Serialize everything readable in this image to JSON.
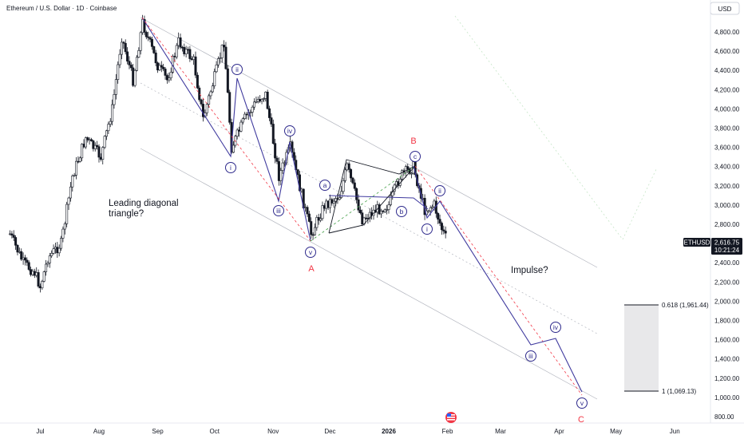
{
  "header": {
    "title": "Ethereum / U.S. Dollar · 1D · Coinbase",
    "currency_button": "USD"
  },
  "chart_data": {
    "type": "candlestick",
    "symbol": "ETHUSD",
    "exchange": "Coinbase",
    "interval": "1D",
    "currency": "USD",
    "grid": false,
    "ylim": [
      800,
      5000
    ],
    "price_axis_ticks": [
      "4,800.00",
      "4,600.00",
      "4,400.00",
      "4,200.00",
      "4,000.00",
      "3,800.00",
      "3,600.00",
      "3,400.00",
      "3,200.00",
      "3,000.00",
      "2,800.00",
      "2,600.00",
      "2,400.00",
      "2,200.00",
      "2,000.00",
      "1,800.00",
      "1,600.00",
      "1,400.00",
      "1,200.00",
      "1,000.00",
      "800.00"
    ],
    "time_axis_ticks": [
      "Jul",
      "Aug",
      "Sep",
      "Oct",
      "Nov",
      "Dec",
      "2026",
      "Feb",
      "Mar",
      "Apr",
      "May",
      "Jun"
    ],
    "last_price": {
      "label": "ETHUSD",
      "value": "2,616.75",
      "countdown": "10:21:24"
    },
    "price_path": [
      {
        "t": "2025-06-15",
        "price": 2700
      },
      {
        "t": "2025-06-22",
        "price": 2400
      },
      {
        "t": "2025-06-28",
        "price": 2300
      },
      {
        "t": "2025-07-01",
        "price": 2150
      },
      {
        "t": "2025-07-05",
        "price": 2450
      },
      {
        "t": "2025-07-12",
        "price": 2600
      },
      {
        "t": "2025-07-18",
        "price": 3300
      },
      {
        "t": "2025-07-25",
        "price": 3700
      },
      {
        "t": "2025-08-02",
        "price": 3500
      },
      {
        "t": "2025-08-08",
        "price": 4000
      },
      {
        "t": "2025-08-13",
        "price": 4750
      },
      {
        "t": "2025-08-19",
        "price": 4300
      },
      {
        "t": "2025-08-24",
        "price": 4900
      },
      {
        "t": "2025-09-01",
        "price": 4450
      },
      {
        "t": "2025-09-06",
        "price": 4300
      },
      {
        "t": "2025-09-12",
        "price": 4700
      },
      {
        "t": "2025-09-20",
        "price": 4500
      },
      {
        "t": "2025-09-25",
        "price": 3900
      },
      {
        "t": "2025-10-02",
        "price": 4400
      },
      {
        "t": "2025-10-06",
        "price": 4700
      },
      {
        "t": "2025-10-10",
        "price": 3600
      },
      {
        "t": "2025-10-17",
        "price": 3900
      },
      {
        "t": "2025-10-24",
        "price": 4100
      },
      {
        "t": "2025-10-28",
        "price": 4150
      },
      {
        "t": "2025-11-04",
        "price": 3300
      },
      {
        "t": "2025-11-10",
        "price": 3600
      },
      {
        "t": "2025-11-21",
        "price": 2700
      },
      {
        "t": "2025-11-28",
        "price": 3000
      },
      {
        "t": "2025-12-06",
        "price": 3100
      },
      {
        "t": "2025-12-10",
        "price": 3400
      },
      {
        "t": "2025-12-18",
        "price": 2850
      },
      {
        "t": "2025-12-25",
        "price": 2950
      },
      {
        "t": "2026-01-01",
        "price": 3000
      },
      {
        "t": "2026-01-07",
        "price": 3300
      },
      {
        "t": "2026-01-14",
        "price": 3400
      },
      {
        "t": "2026-01-20",
        "price": 2950
      },
      {
        "t": "2026-01-25",
        "price": 3000
      },
      {
        "t": "2026-01-29",
        "price": 2750
      },
      {
        "t": "2026-02-01",
        "price": 2617
      }
    ],
    "wave_labels": [
      "i",
      "ii",
      "iii",
      "iv",
      "v",
      "a",
      "b",
      "c",
      "i",
      "ii",
      "iii",
      "iv",
      "v"
    ],
    "abc_labels": [
      "A",
      "B",
      "C"
    ],
    "annotations": [
      "Leading diagonal",
      "triangle?",
      "Impulse?"
    ],
    "fib_levels": [
      {
        "label": "0.618 (1,961.44)",
        "value": 1961.44
      },
      {
        "label": "1 (1,069.13)",
        "value": 1069.13
      }
    ]
  }
}
